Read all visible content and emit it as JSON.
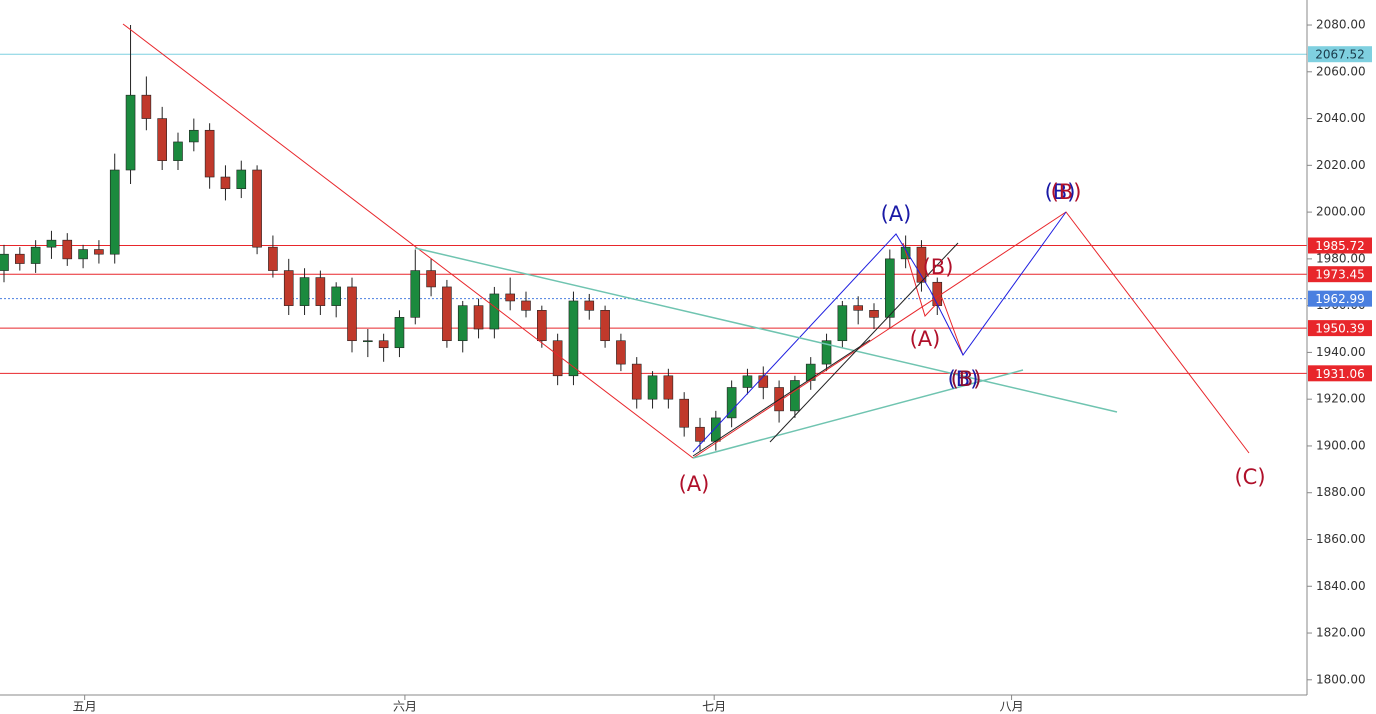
{
  "chart_data": {
    "type": "candlestick",
    "x": [
      0,
      2,
      4,
      6,
      8,
      10,
      12,
      14,
      16,
      18,
      20,
      22,
      24,
      26,
      28,
      30,
      32,
      34,
      36,
      38,
      40,
      42,
      44,
      46,
      48,
      50,
      52,
      54,
      56,
      58,
      60,
      62,
      64,
      66,
      68,
      70,
      72,
      74,
      76,
      78,
      80,
      82,
      84,
      86,
      88,
      90,
      92,
      94,
      96,
      98,
      100,
      102,
      104,
      106,
      108,
      110,
      112,
      114,
      116,
      118
    ],
    "open": [
      1975,
      1982,
      1978,
      1985,
      1988,
      1980,
      1984,
      1982,
      2018,
      2050,
      2040,
      2022,
      2030,
      2035,
      2015,
      2010,
      2018,
      1985,
      1975,
      1960,
      1972,
      1960,
      1968,
      1945,
      1945,
      1942,
      1955,
      1975,
      1968,
      1945,
      1960,
      1950,
      1965,
      1962,
      1958,
      1945,
      1930,
      1962,
      1958,
      1945,
      1935,
      1920,
      1930,
      1920,
      1908,
      1902,
      1912,
      1925,
      1930,
      1925,
      1915,
      1928,
      1935,
      1945,
      1960,
      1958,
      1955,
      1980,
      1985,
      1970
    ],
    "high": [
      1986,
      1985,
      1988,
      1992,
      1991,
      1986,
      1988,
      2025,
      2080,
      2058,
      2045,
      2034,
      2040,
      2038,
      2020,
      2022,
      2020,
      1990,
      1980,
      1976,
      1975,
      1970,
      1972,
      1950,
      1948,
      1958,
      1984,
      1980,
      1971,
      1962,
      1963,
      1968,
      1972,
      1966,
      1960,
      1948,
      1966,
      1965,
      1960,
      1948,
      1938,
      1932,
      1933,
      1923,
      1912,
      1915,
      1928,
      1933,
      1934,
      1928,
      1930,
      1938,
      1948,
      1962,
      1964,
      1961,
      1984,
      1990,
      1988,
      1972
    ],
    "low": [
      1970,
      1975,
      1974,
      1980,
      1977,
      1976,
      1978,
      1978,
      2012,
      2035,
      2018,
      2018,
      2026,
      2010,
      2005,
      2006,
      1982,
      1972,
      1956,
      1956,
      1956,
      1955,
      1940,
      1938,
      1936,
      1938,
      1952,
      1964,
      1942,
      1940,
      1946,
      1946,
      1958,
      1955,
      1942,
      1926,
      1926,
      1954,
      1942,
      1932,
      1916,
      1916,
      1916,
      1904,
      1898,
      1898,
      1908,
      1922,
      1920,
      1910,
      1912,
      1924,
      1932,
      1942,
      1952,
      1950,
      1950,
      1976,
      1966,
      1956
    ],
    "close": [
      1982,
      1978,
      1985,
      1988,
      1980,
      1984,
      1982,
      2018,
      2050,
      2040,
      2022,
      2030,
      2035,
      2015,
      2010,
      2018,
      1985,
      1975,
      1960,
      1972,
      1960,
      1968,
      1945,
      1945,
      1942,
      1955,
      1975,
      1968,
      1945,
      1960,
      1950,
      1965,
      1962,
      1958,
      1945,
      1930,
      1962,
      1958,
      1945,
      1935,
      1920,
      1930,
      1920,
      1908,
      1902,
      1912,
      1925,
      1930,
      1925,
      1915,
      1928,
      1935,
      1945,
      1960,
      1958,
      1955,
      1980,
      1985,
      1970,
      1960
    ],
    "up_color": "#1b8a3e",
    "down_color": "#c0392b",
    "xlim": [
      0,
      165
    ],
    "xticks": [
      {
        "value": 10.7,
        "label": "五月"
      },
      {
        "value": 51.2,
        "label": "六月"
      },
      {
        "value": 90.3,
        "label": "七月"
      },
      {
        "value": 127.9,
        "label": "八月"
      }
    ],
    "ylim": [
      1793.5,
      2090.7
    ],
    "yticks": [
      {
        "value": 2080,
        "label": "2080.00"
      },
      {
        "value": 2060,
        "label": "2060.00"
      },
      {
        "value": 2040,
        "label": "2040.00"
      },
      {
        "value": 2020,
        "label": "2020.00"
      },
      {
        "value": 2000,
        "label": "2000.00"
      },
      {
        "value": 1980,
        "label": "1980.00"
      },
      {
        "value": 1960,
        "label": "1960.00"
      },
      {
        "value": 1940,
        "label": "1940.00"
      },
      {
        "value": 1920,
        "label": "1920.00"
      },
      {
        "value": 1900,
        "label": "1900.00"
      },
      {
        "value": 1880,
        "label": "1880.00"
      },
      {
        "value": 1860,
        "label": "1860.00"
      },
      {
        "value": 1840,
        "label": "1840.00"
      },
      {
        "value": 1820,
        "label": "1820.00"
      },
      {
        "value": 1800,
        "label": "1800.00"
      }
    ],
    "hlines": [
      {
        "value": 2067.52,
        "color": "#7fd0e0",
        "text_color": "#1a3a4a"
      },
      {
        "value": 1985.72,
        "color": "#e8262b",
        "text_color": "#ffffff"
      },
      {
        "value": 1973.45,
        "color": "#e8262b",
        "text_color": "#ffffff"
      },
      {
        "value": 1962.99,
        "color": "#4a7fe0",
        "text_color": "#ffffff",
        "dotted": true
      },
      {
        "value": 1950.39,
        "color": "#e8262b",
        "text_color": "#ffffff"
      },
      {
        "value": 1931.06,
        "color": "#e8262b",
        "text_color": "#ffffff"
      }
    ],
    "annotations": [
      {
        "text": "(A)",
        "color": "#1a1aa6"
      },
      {
        "text": "(B)",
        "color": "#1a1aa6"
      },
      {
        "text": "(B)",
        "color": "#b0102a"
      },
      {
        "text": "(B)",
        "color": "#b0102a"
      },
      {
        "text": "(A)",
        "color": "#b0102a"
      },
      {
        "text": "(B)",
        "color": "#1a1aa6"
      },
      {
        "text": "(B)",
        "color": "#8b1030"
      },
      {
        "text": "(A)",
        "color": "#b0102a"
      },
      {
        "text": "(C)",
        "color": "#b0102a"
      }
    ]
  }
}
